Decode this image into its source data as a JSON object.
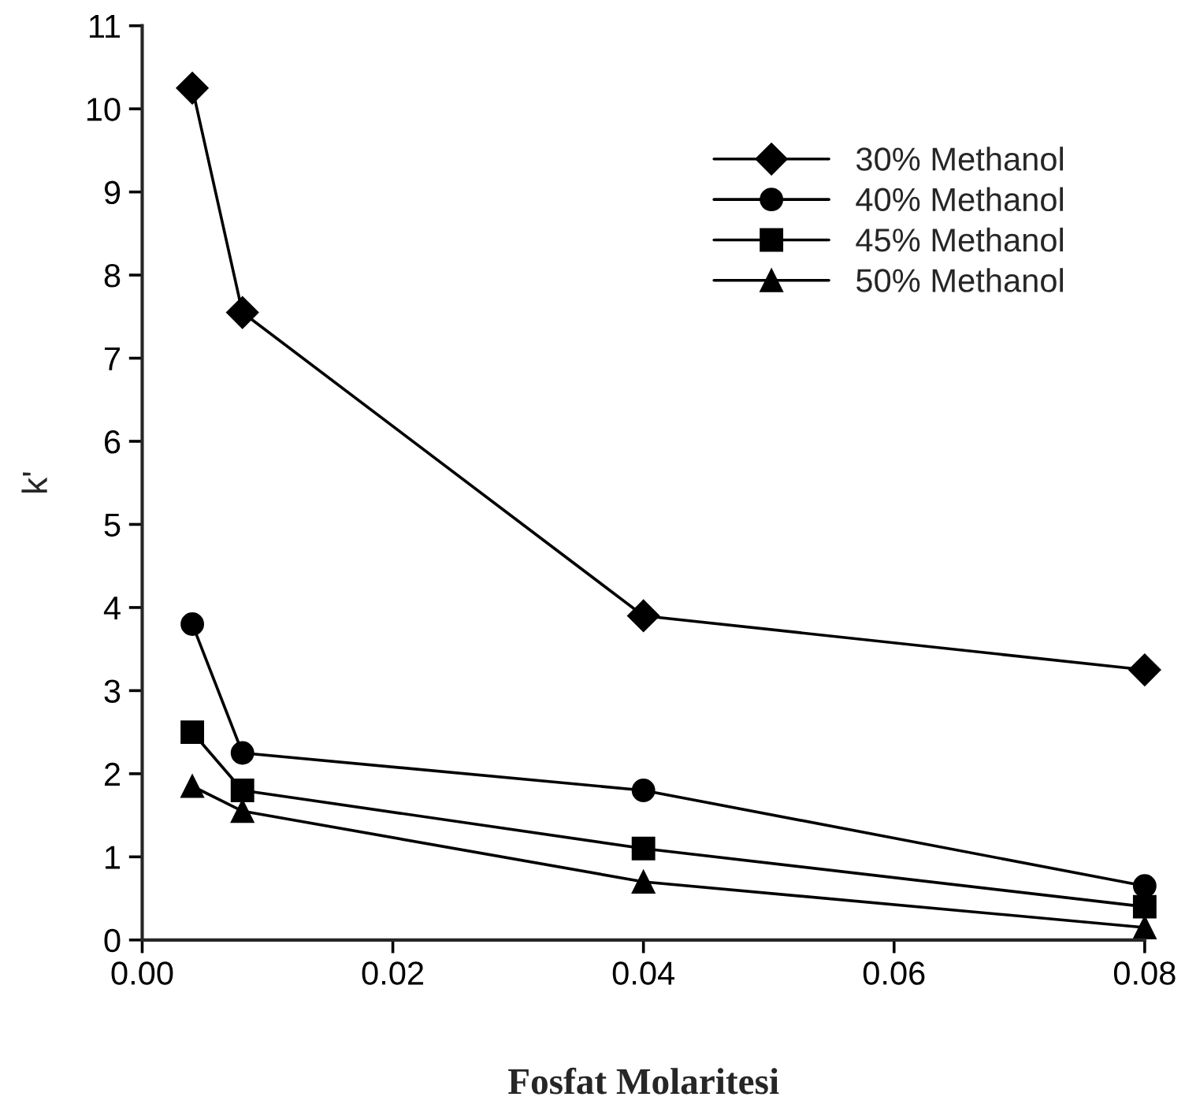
{
  "chart_data": {
    "type": "line",
    "xlabel": "Fosfat Molaritesi",
    "ylabel": "k'",
    "x": [
      0.004,
      0.008,
      0.04,
      0.08
    ],
    "series": [
      {
        "name": "30% Methanol",
        "color": "#000000",
        "marker": "diamond",
        "values": [
          10.25,
          7.55,
          3.9,
          3.25
        ]
      },
      {
        "name": "40% Methanol",
        "color": "#000000",
        "marker": "circle",
        "values": [
          3.8,
          2.25,
          1.8,
          0.65
        ]
      },
      {
        "name": "45% Methanol",
        "color": "#000000",
        "marker": "square",
        "values": [
          2.5,
          1.8,
          1.1,
          0.4
        ]
      },
      {
        "name": "50% Methanol",
        "color": "#000000",
        "marker": "triangle",
        "values": [
          1.85,
          1.55,
          0.7,
          0.15
        ]
      }
    ],
    "xlim": [
      0,
      0.08
    ],
    "ylim": [
      0,
      11
    ],
    "xticks": [
      {
        "value": 0,
        "label": "0.00"
      },
      {
        "value": 0.02,
        "label": "0.02"
      },
      {
        "value": 0.04,
        "label": "0.04"
      },
      {
        "value": 0.06,
        "label": "0.06"
      },
      {
        "value": 0.08,
        "label": "0.08"
      }
    ],
    "yticks": [
      0,
      1,
      2,
      3,
      4,
      5,
      6,
      7,
      8,
      9,
      10,
      11
    ],
    "grid": false,
    "legend": "top right",
    "line_style": "solid"
  }
}
